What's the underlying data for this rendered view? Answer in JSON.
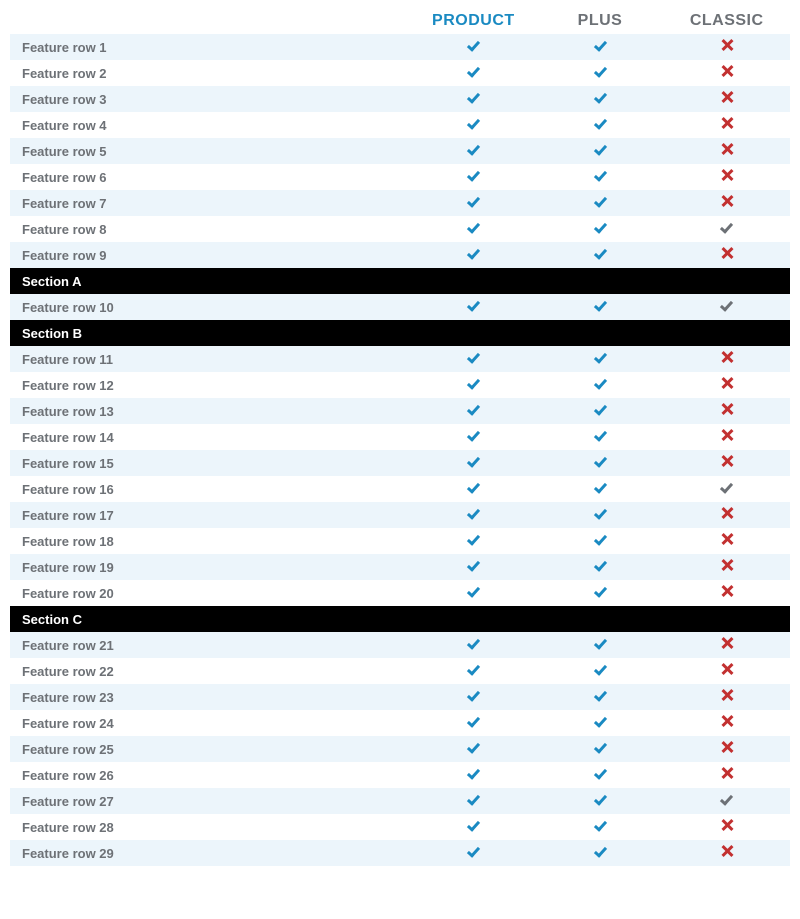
{
  "colors": {
    "brand_blue": "#1a8ac2",
    "label_grey": "#6d7176",
    "alt_row_bg": "#ecf5fb",
    "section_bg": "#000000",
    "section_text": "#ffffff",
    "cross_red": "#c23030",
    "check_grey": "#6d7176",
    "header_c_color": "#6d7176"
  },
  "columns": {
    "a": "PRODUCT",
    "b": "PLUS",
    "c": "CLASSIC"
  },
  "rows": [
    {
      "type": "item",
      "label": "Feature row 1",
      "a": "check",
      "b": "check",
      "c": "cross"
    },
    {
      "type": "item",
      "label": "Feature row 2",
      "a": "check",
      "b": "check",
      "c": "cross"
    },
    {
      "type": "item",
      "label": "Feature row 3",
      "a": "check",
      "b": "check",
      "c": "cross"
    },
    {
      "type": "item",
      "label": "Feature row 4",
      "a": "check",
      "b": "check",
      "c": "cross"
    },
    {
      "type": "item",
      "label": "Feature row 5",
      "a": "check",
      "b": "check",
      "c": "cross"
    },
    {
      "type": "item",
      "label": "Feature row 6",
      "a": "check",
      "b": "check",
      "c": "cross"
    },
    {
      "type": "item",
      "label": "Feature row 7",
      "a": "check",
      "b": "check",
      "c": "cross"
    },
    {
      "type": "item",
      "label": "Feature row 8",
      "a": "check",
      "b": "check",
      "c": "check_grey"
    },
    {
      "type": "item",
      "label": "Feature row 9",
      "a": "check",
      "b": "check",
      "c": "cross"
    },
    {
      "type": "section",
      "label": "Section A"
    },
    {
      "type": "item",
      "label": "Feature row 10",
      "a": "check",
      "b": "check",
      "c": "check_grey"
    },
    {
      "type": "section",
      "label": "Section B"
    },
    {
      "type": "item",
      "label": "Feature row 11",
      "a": "check",
      "b": "check",
      "c": "cross"
    },
    {
      "type": "item",
      "label": "Feature row 12",
      "a": "check",
      "b": "check",
      "c": "cross"
    },
    {
      "type": "item",
      "label": "Feature row 13",
      "a": "check",
      "b": "check",
      "c": "cross"
    },
    {
      "type": "item",
      "label": "Feature row 14",
      "a": "check",
      "b": "check",
      "c": "cross"
    },
    {
      "type": "item",
      "label": "Feature row 15",
      "a": "check",
      "b": "check",
      "c": "cross"
    },
    {
      "type": "item",
      "label": "Feature row 16",
      "a": "check",
      "b": "check",
      "c": "check_grey"
    },
    {
      "type": "item",
      "label": "Feature row 17",
      "a": "check",
      "b": "check",
      "c": "cross"
    },
    {
      "type": "item",
      "label": "Feature row 18",
      "a": "check",
      "b": "check",
      "c": "cross"
    },
    {
      "type": "item",
      "label": "Feature row 19",
      "a": "check",
      "b": "check",
      "c": "cross"
    },
    {
      "type": "item",
      "label": "Feature row 20",
      "a": "check",
      "b": "check",
      "c": "cross"
    },
    {
      "type": "section",
      "label": "Section C"
    },
    {
      "type": "item",
      "label": "Feature row 21",
      "a": "check",
      "b": "check",
      "c": "cross"
    },
    {
      "type": "item",
      "label": "Feature row 22",
      "a": "check",
      "b": "check",
      "c": "cross"
    },
    {
      "type": "item",
      "label": "Feature row 23",
      "a": "check",
      "b": "check",
      "c": "cross"
    },
    {
      "type": "item",
      "label": "Feature row 24",
      "a": "check",
      "b": "check",
      "c": "cross"
    },
    {
      "type": "item",
      "label": "Feature row 25",
      "a": "check",
      "b": "check",
      "c": "cross"
    },
    {
      "type": "item",
      "label": "Feature row 26",
      "a": "check",
      "b": "check",
      "c": "cross"
    },
    {
      "type": "item",
      "label": "Feature row 27",
      "a": "check",
      "b": "check",
      "c": "check_grey"
    },
    {
      "type": "item",
      "label": "Feature row 28",
      "a": "check",
      "b": "check",
      "c": "cross"
    },
    {
      "type": "item",
      "label": "Feature row 29",
      "a": "check",
      "b": "check",
      "c": "cross"
    }
  ]
}
